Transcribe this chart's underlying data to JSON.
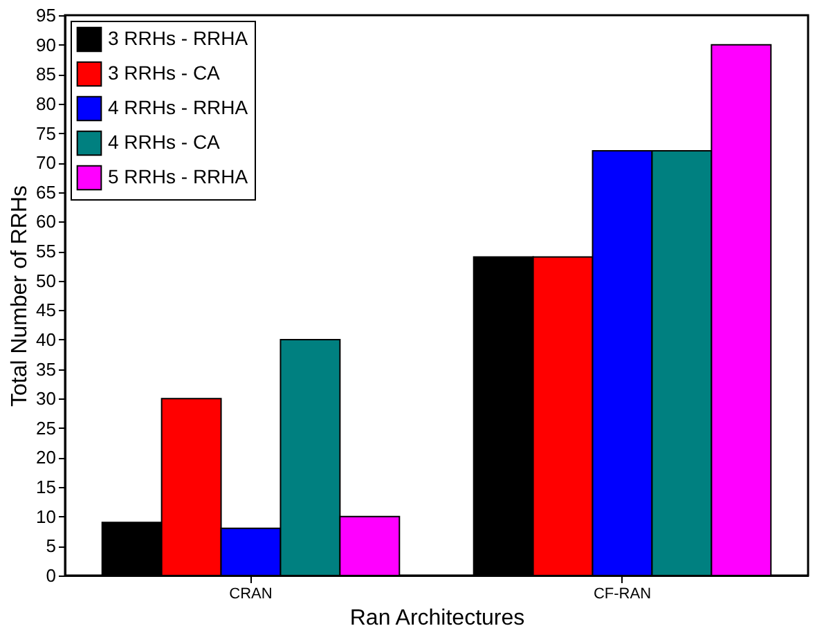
{
  "chart_data": {
    "type": "bar",
    "xlabel": "Ran Architectures",
    "ylabel": "Total Number of RRHs",
    "categories": [
      "CRAN",
      "CF-RAN"
    ],
    "series": [
      {
        "name": "3 RRHs - RRHA",
        "color": "#000000",
        "values": [
          9,
          54
        ]
      },
      {
        "name": "3 RRHs - CA",
        "color": "#ff0000",
        "values": [
          30,
          54
        ]
      },
      {
        "name": "4 RRHs - RRHA",
        "color": "#0000ff",
        "values": [
          8,
          72
        ]
      },
      {
        "name": "4 RRHs - CA",
        "color": "#008080",
        "values": [
          40,
          72
        ]
      },
      {
        "name": "5 RRHs - RRHA",
        "color": "#ff00ff",
        "values": [
          10,
          90
        ]
      }
    ],
    "ylim": [
      0,
      95
    ],
    "yticks": [
      0,
      5,
      10,
      15,
      20,
      25,
      30,
      35,
      40,
      45,
      50,
      55,
      60,
      65,
      70,
      75,
      80,
      85,
      90,
      95
    ],
    "grid": false,
    "legend": "top left"
  }
}
